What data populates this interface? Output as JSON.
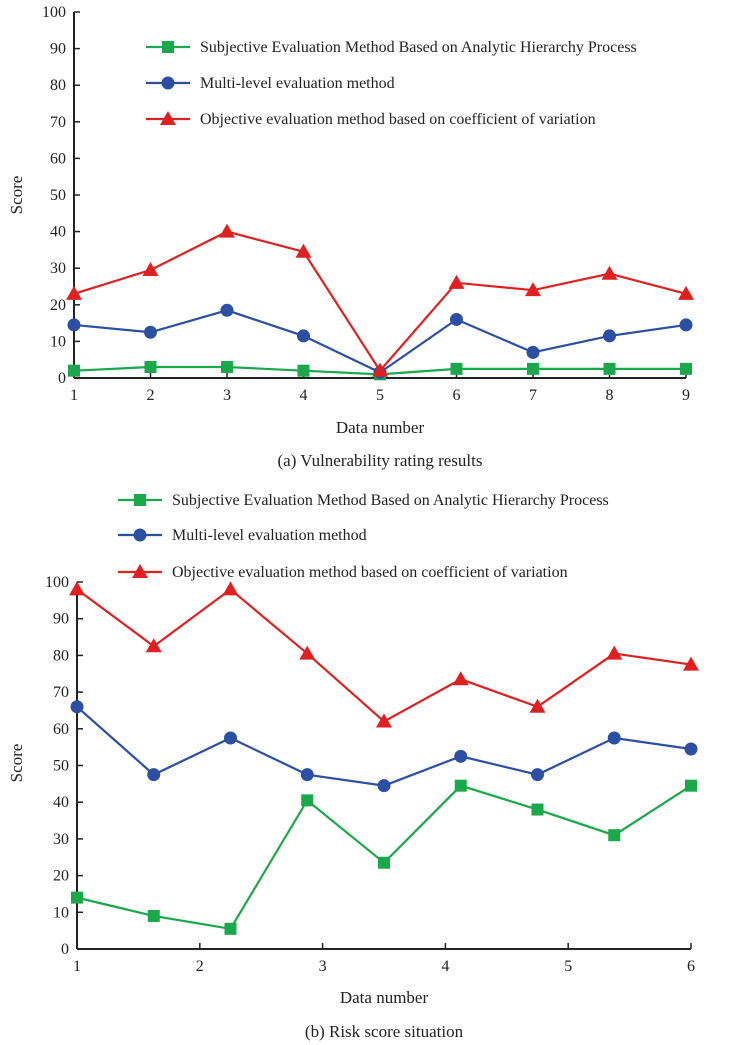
{
  "chart_data": [
    {
      "type": "line",
      "caption": "(a) Vulnerability rating results",
      "xlabel": "Data number",
      "ylabel": "Score",
      "x": [
        1,
        2,
        3,
        4,
        5,
        6,
        7,
        8,
        9
      ],
      "x_ticks": [
        "1",
        "2",
        "3",
        "4",
        "5",
        "6",
        "7",
        "8",
        "9"
      ],
      "ylim": [
        0,
        100
      ],
      "y_ticks": [
        "0",
        "10",
        "20",
        "30",
        "40",
        "50",
        "60",
        "70",
        "80",
        "90",
        "100"
      ],
      "grid": false,
      "legend_position": "top-right",
      "series": [
        {
          "name": "Subjective Evaluation Method Based on Analytic Hierarchy Process",
          "marker": "square",
          "color": "#1aa84a",
          "values": [
            2,
            3,
            3,
            2,
            1,
            2.5,
            2.5,
            2.5,
            2.5
          ]
        },
        {
          "name": "Multi-level evaluation method",
          "marker": "circle",
          "color": "#2b4fa3",
          "values": [
            14.5,
            12.5,
            18.5,
            11.5,
            1.5,
            16,
            7,
            11.5,
            14.5
          ]
        },
        {
          "name": "Objective evaluation method based on coefficient of variation",
          "marker": "triangle",
          "color": "#e02020",
          "values": [
            23,
            29.5,
            40,
            34.5,
            2,
            26,
            24,
            28.5,
            23
          ]
        }
      ]
    },
    {
      "type": "line",
      "caption": "(b) Risk score situation",
      "xlabel": "Data number",
      "ylabel": "Score",
      "x": [
        1,
        1.625,
        2.25,
        2.875,
        3.5,
        4.125,
        4.75,
        5.375,
        6
      ],
      "x_ticks": [
        "1",
        "2",
        "3",
        "4",
        "5",
        "6"
      ],
      "ylim": [
        0,
        100
      ],
      "y_ticks": [
        "0",
        "10",
        "20",
        "30",
        "40",
        "50",
        "60",
        "70",
        "80",
        "90",
        "100"
      ],
      "grid": false,
      "legend_position": "top",
      "series": [
        {
          "name": "Subjective Evaluation Method Based on Analytic Hierarchy Process",
          "marker": "square",
          "color": "#1aa84a",
          "values": [
            14,
            9,
            5.5,
            40.5,
            23.5,
            44.5,
            38,
            31,
            44.5
          ]
        },
        {
          "name": "Multi-level evaluation method",
          "marker": "circle",
          "color": "#2b4fa3",
          "values": [
            66,
            47.5,
            57.5,
            47.5,
            44.5,
            52.5,
            47.5,
            57.5,
            54.5
          ]
        },
        {
          "name": "Objective evaluation method based on coefficient of variation",
          "marker": "triangle",
          "color": "#e02020",
          "values": [
            98,
            82.5,
            98,
            80.5,
            62,
            73.5,
            66,
            80.5,
            77.5
          ]
        }
      ]
    }
  ]
}
